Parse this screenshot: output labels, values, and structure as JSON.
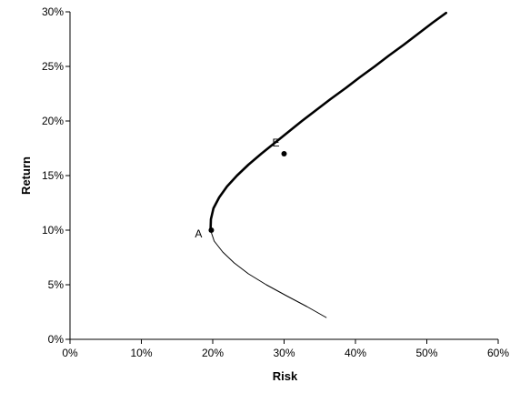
{
  "chart_data": {
    "type": "line",
    "title": "",
    "xlabel": "Risk",
    "ylabel": "Return",
    "xlim": [
      0,
      60
    ],
    "ylim": [
      0,
      30
    ],
    "x_ticks": [
      0,
      10,
      20,
      30,
      40,
      50,
      60
    ],
    "y_ticks": [
      0,
      5,
      10,
      15,
      20,
      25,
      30
    ],
    "x_tick_labels": [
      "0%",
      "10%",
      "20%",
      "30%",
      "40%",
      "50%",
      "60%"
    ],
    "y_tick_labels": [
      "0%",
      "5%",
      "10%",
      "15%",
      "20%",
      "25%",
      "30%"
    ],
    "grid": false,
    "legend": "none",
    "series": [
      {
        "role": "efficient frontier (upper, thick)",
        "points": [
          [
            19.7,
            10
          ],
          [
            19.75,
            11
          ],
          [
            20.1,
            12
          ],
          [
            20.9,
            13
          ],
          [
            22.0,
            14
          ],
          [
            23.4,
            15
          ],
          [
            25.0,
            16
          ],
          [
            26.8,
            17
          ],
          [
            28.7,
            18
          ],
          [
            30.6,
            19
          ],
          [
            32.5,
            20
          ],
          [
            34.5,
            21
          ],
          [
            36.5,
            22
          ],
          [
            38.6,
            23
          ],
          [
            40.6,
            24
          ],
          [
            42.7,
            25
          ],
          [
            44.7,
            26
          ],
          [
            46.8,
            27
          ],
          [
            48.8,
            28
          ],
          [
            50.8,
            29
          ],
          [
            52.7,
            29.9
          ]
        ]
      },
      {
        "role": "inefficient portion (lower, thin)",
        "points": [
          [
            19.7,
            10
          ],
          [
            20.2,
            9
          ],
          [
            21.4,
            8
          ],
          [
            23.0,
            7
          ],
          [
            25.0,
            6
          ],
          [
            27.5,
            5
          ],
          [
            30.3,
            4
          ],
          [
            33.2,
            3
          ],
          [
            35.9,
            2
          ]
        ]
      }
    ],
    "points": [
      {
        "label": "A",
        "x": 19.8,
        "y": 10.0
      },
      {
        "label": "E",
        "x": 30.0,
        "y": 17.0
      }
    ]
  }
}
